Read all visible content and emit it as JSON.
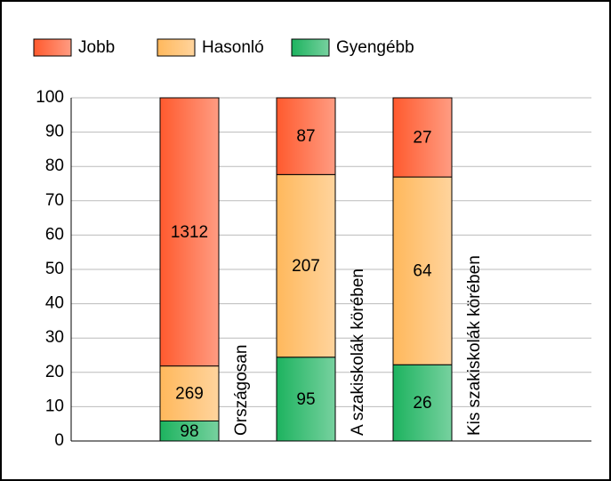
{
  "chart_data": {
    "type": "bar",
    "stacking": "percent",
    "categories": [
      "Országosan",
      "A szakiskolák körében",
      "Kis szakiskolák körében"
    ],
    "series": [
      {
        "name": "Gyengébb",
        "color": "#1db35f",
        "values": [
          98,
          95,
          26
        ]
      },
      {
        "name": "Hasonló",
        "color": "#ffb85c",
        "values": [
          269,
          207,
          64
        ]
      },
      {
        "name": "Jobb",
        "color": "#ff5a2e",
        "values": [
          1312,
          87,
          27
        ]
      }
    ],
    "legend_order": [
      2,
      1,
      0
    ],
    "ylim": [
      0,
      100
    ],
    "yticks": [
      0,
      10,
      20,
      30,
      40,
      50,
      60,
      70,
      80,
      90,
      100
    ],
    "grid": true
  }
}
